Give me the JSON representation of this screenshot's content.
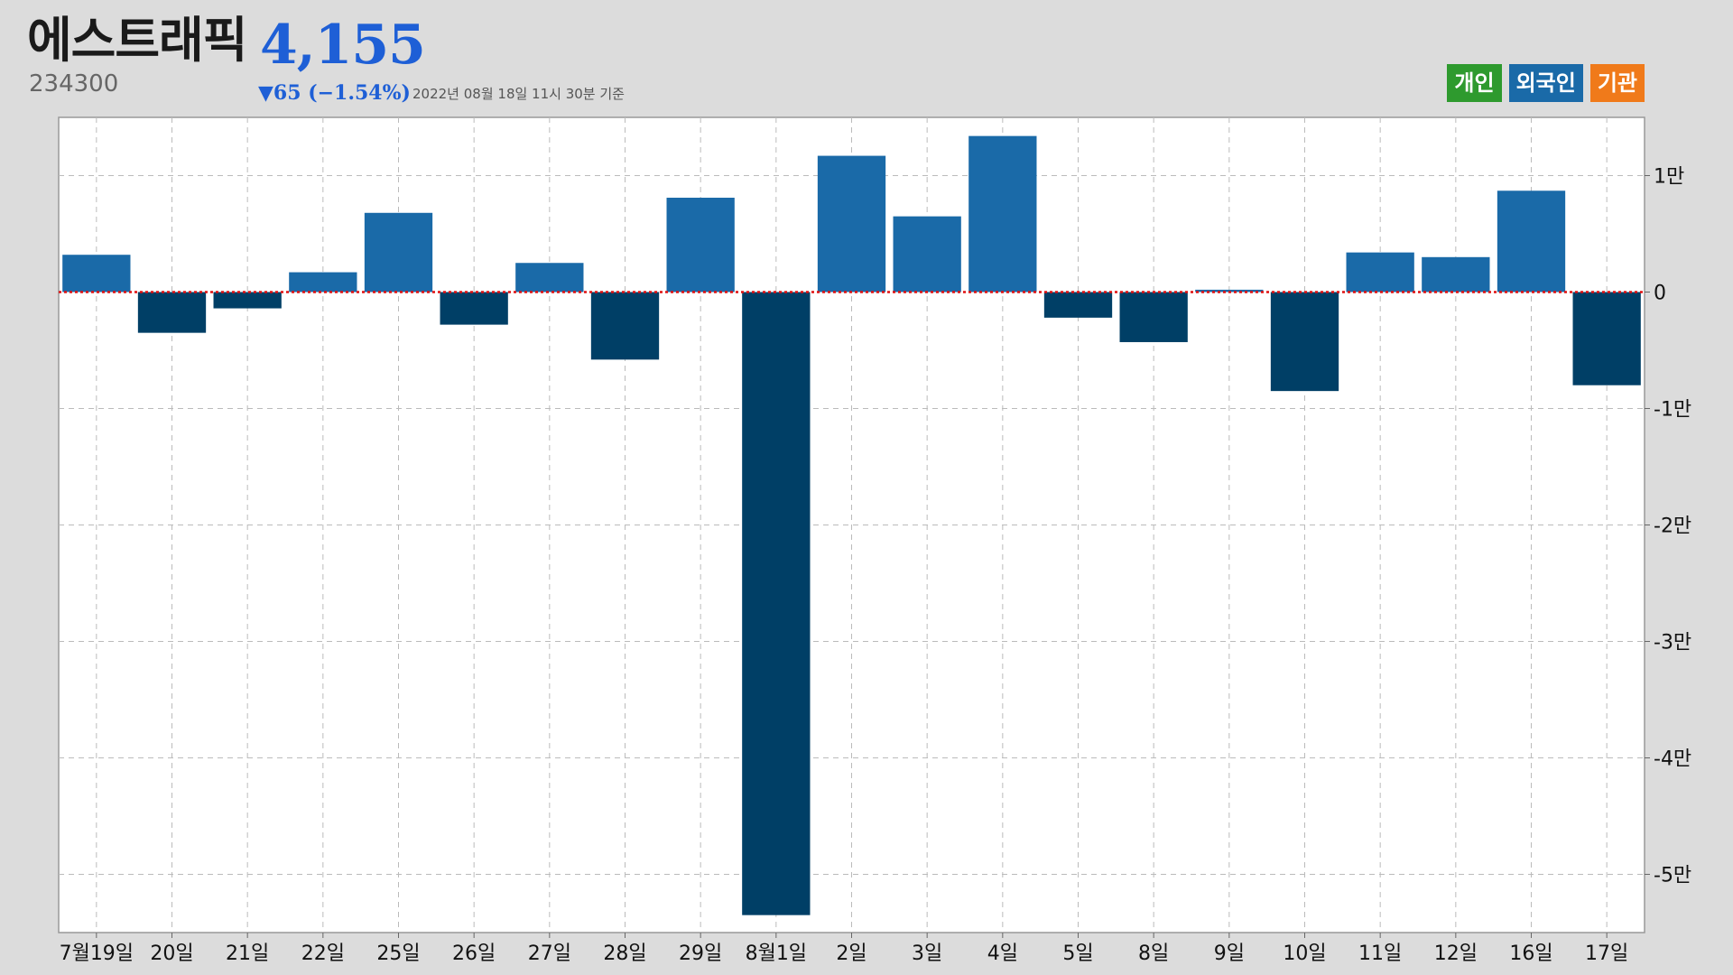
{
  "header": {
    "stock_name": "에스트래픽",
    "stock_code": "234300",
    "price": "4,155",
    "change": "▼65 (−1.54%)",
    "timestamp": "2022년 08월 18일 11시 30분 기준"
  },
  "legend": [
    {
      "label": "개인",
      "color": "#2e9a2e"
    },
    {
      "label": "외국인",
      "color": "#1a6aa8"
    },
    {
      "label": "기관",
      "color": "#f07a1a"
    }
  ],
  "colors": {
    "positive_bar": "#1a6aa8",
    "negative_bar": "#003f66",
    "zero_line": "#e01010",
    "grid": "#bbbbbb",
    "plot_bg": "#ffffff"
  },
  "chart_data": {
    "type": "bar",
    "series": [
      {
        "name": "외국인",
        "values": [
          3200,
          -3500,
          -1400,
          1700,
          6800,
          -2800,
          2500,
          -5800,
          8100,
          -53500,
          11700,
          6500,
          13400,
          -2200,
          -4300,
          200,
          -8500,
          3400,
          3000,
          8700,
          -8000
        ]
      }
    ],
    "categories": [
      "7월19일",
      "20일",
      "21일",
      "22일",
      "25일",
      "26일",
      "27일",
      "28일",
      "29일",
      "8월1일",
      "2일",
      "3일",
      "4일",
      "5일",
      "8일",
      "9일",
      "10일",
      "11일",
      "12일",
      "16일",
      "17일"
    ],
    "ylim": [
      -55000,
      15000
    ],
    "yticks": [
      10000,
      0,
      -10000,
      -20000,
      -30000,
      -40000,
      -50000
    ],
    "ytick_labels": [
      "1만",
      "0",
      "-1만",
      "-2만",
      "-3만",
      "-4만",
      "-5만"
    ],
    "grid": true,
    "zero_line": true,
    "legend_position": "top-right"
  }
}
